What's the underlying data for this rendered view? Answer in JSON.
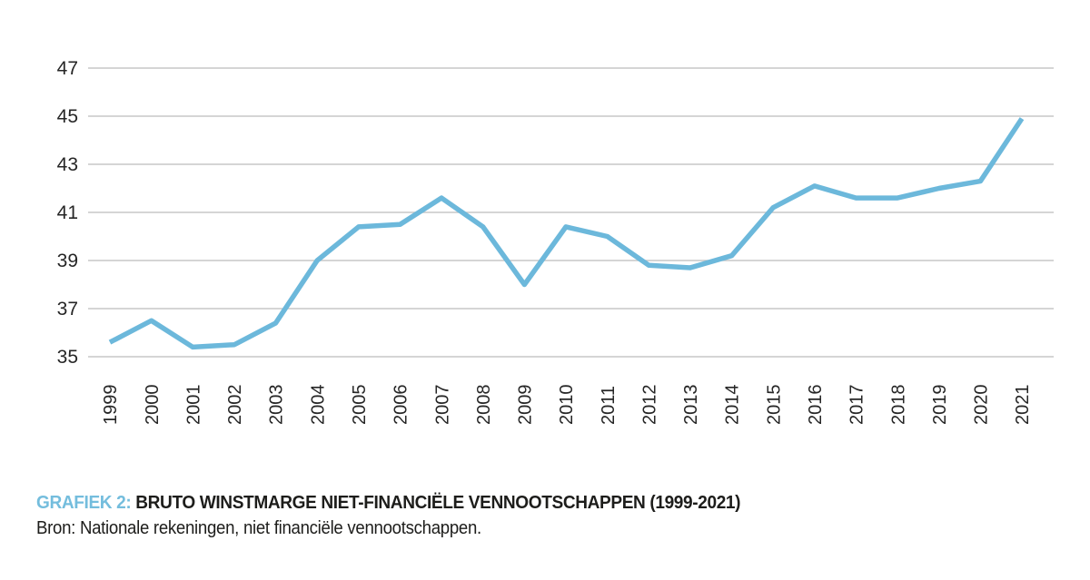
{
  "caption": {
    "label": "GRAFIEK 2:",
    "title": " BRUTO WINSTMARGE NIET-FINANCIËLE VENNOOTSCHAPPEN (1999-2021)",
    "source": "Bron: Nationale rekeningen, niet financiële vennootschappen.",
    "label_color": "#74bddd",
    "text_color": "#1d1d1b"
  },
  "chart_data": {
    "type": "line",
    "title": "Bruto winstmarge niet-financiële vennootschappen (1999-2021)",
    "x": [
      "1999",
      "2000",
      "2001",
      "2002",
      "2003",
      "2004",
      "2005",
      "2006",
      "2007",
      "2008",
      "2009",
      "2010",
      "2011",
      "2012",
      "2013",
      "2014",
      "2015",
      "2016",
      "2017",
      "2018",
      "2019",
      "2020",
      "2021"
    ],
    "series": [
      {
        "name": "Bruto winstmarge",
        "values": [
          35.6,
          36.5,
          35.4,
          35.5,
          36.4,
          39.0,
          40.4,
          40.5,
          41.6,
          40.4,
          38.0,
          40.4,
          40.0,
          38.8,
          38.7,
          39.2,
          41.2,
          42.1,
          41.6,
          41.6,
          42.0,
          42.3,
          44.9
        ],
        "color": "#6cb8db"
      }
    ],
    "xlabel": "",
    "ylabel": "",
    "ylim": [
      35,
      47
    ],
    "yticks": [
      35,
      37,
      39,
      41,
      43,
      45,
      47
    ],
    "grid": "horizontal",
    "legend": "none",
    "gridline_color": "#c7c7c7",
    "tick_label_color": "#262626"
  }
}
